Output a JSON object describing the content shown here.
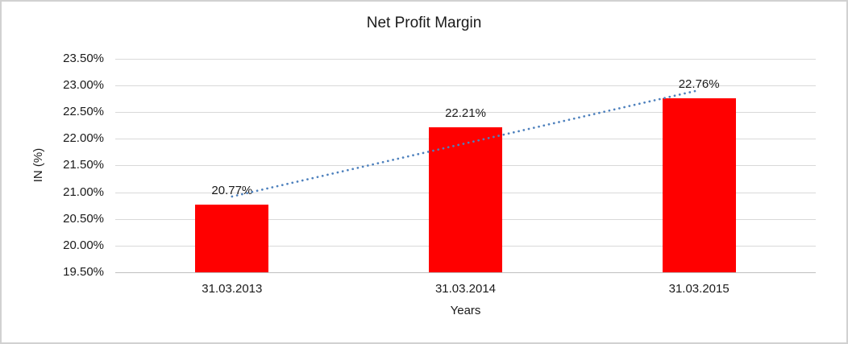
{
  "frame": {
    "background": "#FFFFFF",
    "border_color": "#D1D1D1"
  },
  "chart_data": {
    "type": "bar",
    "title": "Net Profit Margin",
    "categories": [
      "31.03.2013",
      "31.03.2014",
      "31.03.2015"
    ],
    "values": [
      20.77,
      22.21,
      22.76
    ],
    "data_labels": [
      "20.77%",
      "22.21%",
      "22.76%"
    ],
    "xlabel": "Years",
    "ylabel": "IN (%)",
    "ylim": [
      19.5,
      23.5
    ],
    "ytick_step": 0.5,
    "ytick_labels": [
      "19.50%",
      "20.00%",
      "20.50%",
      "21.00%",
      "21.50%",
      "22.00%",
      "22.50%",
      "23.00%",
      "23.50%"
    ],
    "grid": true,
    "legend": "none",
    "bar_color": "#FF0000",
    "gridline_color": "#D9D9D9",
    "axis_line_color": "#BFBFBF",
    "text_color": "#1A1A1A",
    "trendline": {
      "type": "linear",
      "style": "dotted",
      "color": "#4E81BD"
    }
  }
}
